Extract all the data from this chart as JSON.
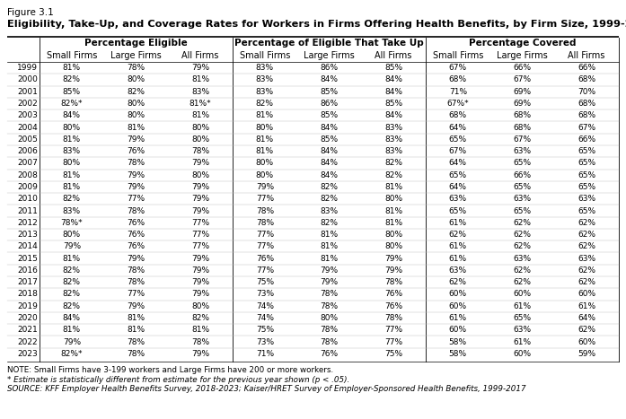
{
  "figure_label": "Figure 3.1",
  "title": "Eligibility, Take-Up, and Coverage Rates for Workers in Firms Offering Health Benefits, by Firm Size, 1999-2023",
  "note": "NOTE: Small Firms have 3-199 workers and Large Firms have 200 or more workers.",
  "asterisk_note": "* Estimate is statistically different from estimate for the previous year shown (p < .05).",
  "source": "SOURCE: KFF Employer Health Benefits Survey, 2018-2023; Kaiser/HRET Survey of Employer-Sponsored Health Benefits, 1999-2017",
  "col_groups": [
    "Percentage Eligible",
    "Percentage of Eligible That Take Up",
    "Percentage Covered"
  ],
  "sub_cols": [
    "Small Firms",
    "Large Firms",
    "All Firms"
  ],
  "years": [
    1999,
    2000,
    2001,
    2002,
    2003,
    2004,
    2005,
    2006,
    2007,
    2008,
    2009,
    2010,
    2011,
    2012,
    2013,
    2014,
    2015,
    2016,
    2017,
    2018,
    2019,
    2020,
    2021,
    2022,
    2023
  ],
  "eligible_small": [
    "81%",
    "82%",
    "85%",
    "82%*",
    "84%",
    "80%",
    "81%",
    "83%",
    "80%",
    "81%",
    "81%",
    "82%",
    "83%",
    "78%*",
    "80%",
    "79%",
    "81%",
    "82%",
    "82%",
    "82%",
    "82%",
    "84%",
    "81%",
    "79%",
    "82%*"
  ],
  "eligible_large": [
    "78%",
    "80%",
    "82%",
    "80%",
    "80%",
    "81%",
    "79%",
    "76%",
    "78%",
    "79%",
    "79%",
    "77%",
    "78%",
    "76%",
    "76%",
    "76%",
    "79%",
    "78%",
    "78%",
    "77%",
    "79%",
    "81%",
    "81%",
    "78%",
    "78%"
  ],
  "eligible_all": [
    "79%",
    "81%",
    "83%",
    "81%*",
    "81%",
    "80%",
    "80%",
    "78%",
    "79%",
    "80%",
    "79%",
    "79%",
    "79%",
    "77%",
    "77%",
    "77%",
    "79%",
    "79%",
    "79%",
    "79%",
    "80%",
    "82%",
    "81%",
    "78%",
    "79%"
  ],
  "takeup_small": [
    "83%",
    "83%",
    "83%",
    "82%",
    "81%",
    "80%",
    "81%",
    "81%",
    "80%",
    "80%",
    "79%",
    "77%",
    "78%",
    "78%",
    "77%",
    "77%",
    "76%",
    "77%",
    "75%",
    "73%",
    "74%",
    "74%",
    "75%",
    "73%",
    "71%"
  ],
  "takeup_large": [
    "86%",
    "84%",
    "85%",
    "86%",
    "85%",
    "84%",
    "85%",
    "84%",
    "84%",
    "84%",
    "82%",
    "82%",
    "83%",
    "82%",
    "81%",
    "81%",
    "81%",
    "79%",
    "79%",
    "78%",
    "78%",
    "80%",
    "78%",
    "78%",
    "76%"
  ],
  "takeup_all": [
    "85%",
    "84%",
    "84%",
    "85%",
    "84%",
    "83%",
    "83%",
    "83%",
    "82%",
    "82%",
    "81%",
    "80%",
    "81%",
    "81%",
    "80%",
    "80%",
    "79%",
    "79%",
    "78%",
    "76%",
    "76%",
    "78%",
    "77%",
    "77%",
    "75%"
  ],
  "covered_small": [
    "67%",
    "68%",
    "71%",
    "67%*",
    "68%",
    "64%",
    "65%",
    "67%",
    "64%",
    "65%",
    "64%",
    "63%",
    "65%",
    "61%",
    "62%",
    "61%",
    "61%",
    "63%",
    "62%",
    "60%",
    "60%",
    "61%",
    "60%",
    "58%",
    "58%"
  ],
  "covered_large": [
    "66%",
    "67%",
    "69%",
    "69%",
    "68%",
    "68%",
    "67%",
    "63%",
    "65%",
    "66%",
    "65%",
    "63%",
    "65%",
    "62%",
    "62%",
    "62%",
    "63%",
    "62%",
    "62%",
    "60%",
    "61%",
    "65%",
    "63%",
    "61%",
    "60%"
  ],
  "covered_all": [
    "66%",
    "68%",
    "70%",
    "68%",
    "68%",
    "67%",
    "66%",
    "65%",
    "65%",
    "65%",
    "65%",
    "63%",
    "65%",
    "62%",
    "62%",
    "62%",
    "63%",
    "62%",
    "62%",
    "60%",
    "61%",
    "64%",
    "62%",
    "60%",
    "59%"
  ]
}
